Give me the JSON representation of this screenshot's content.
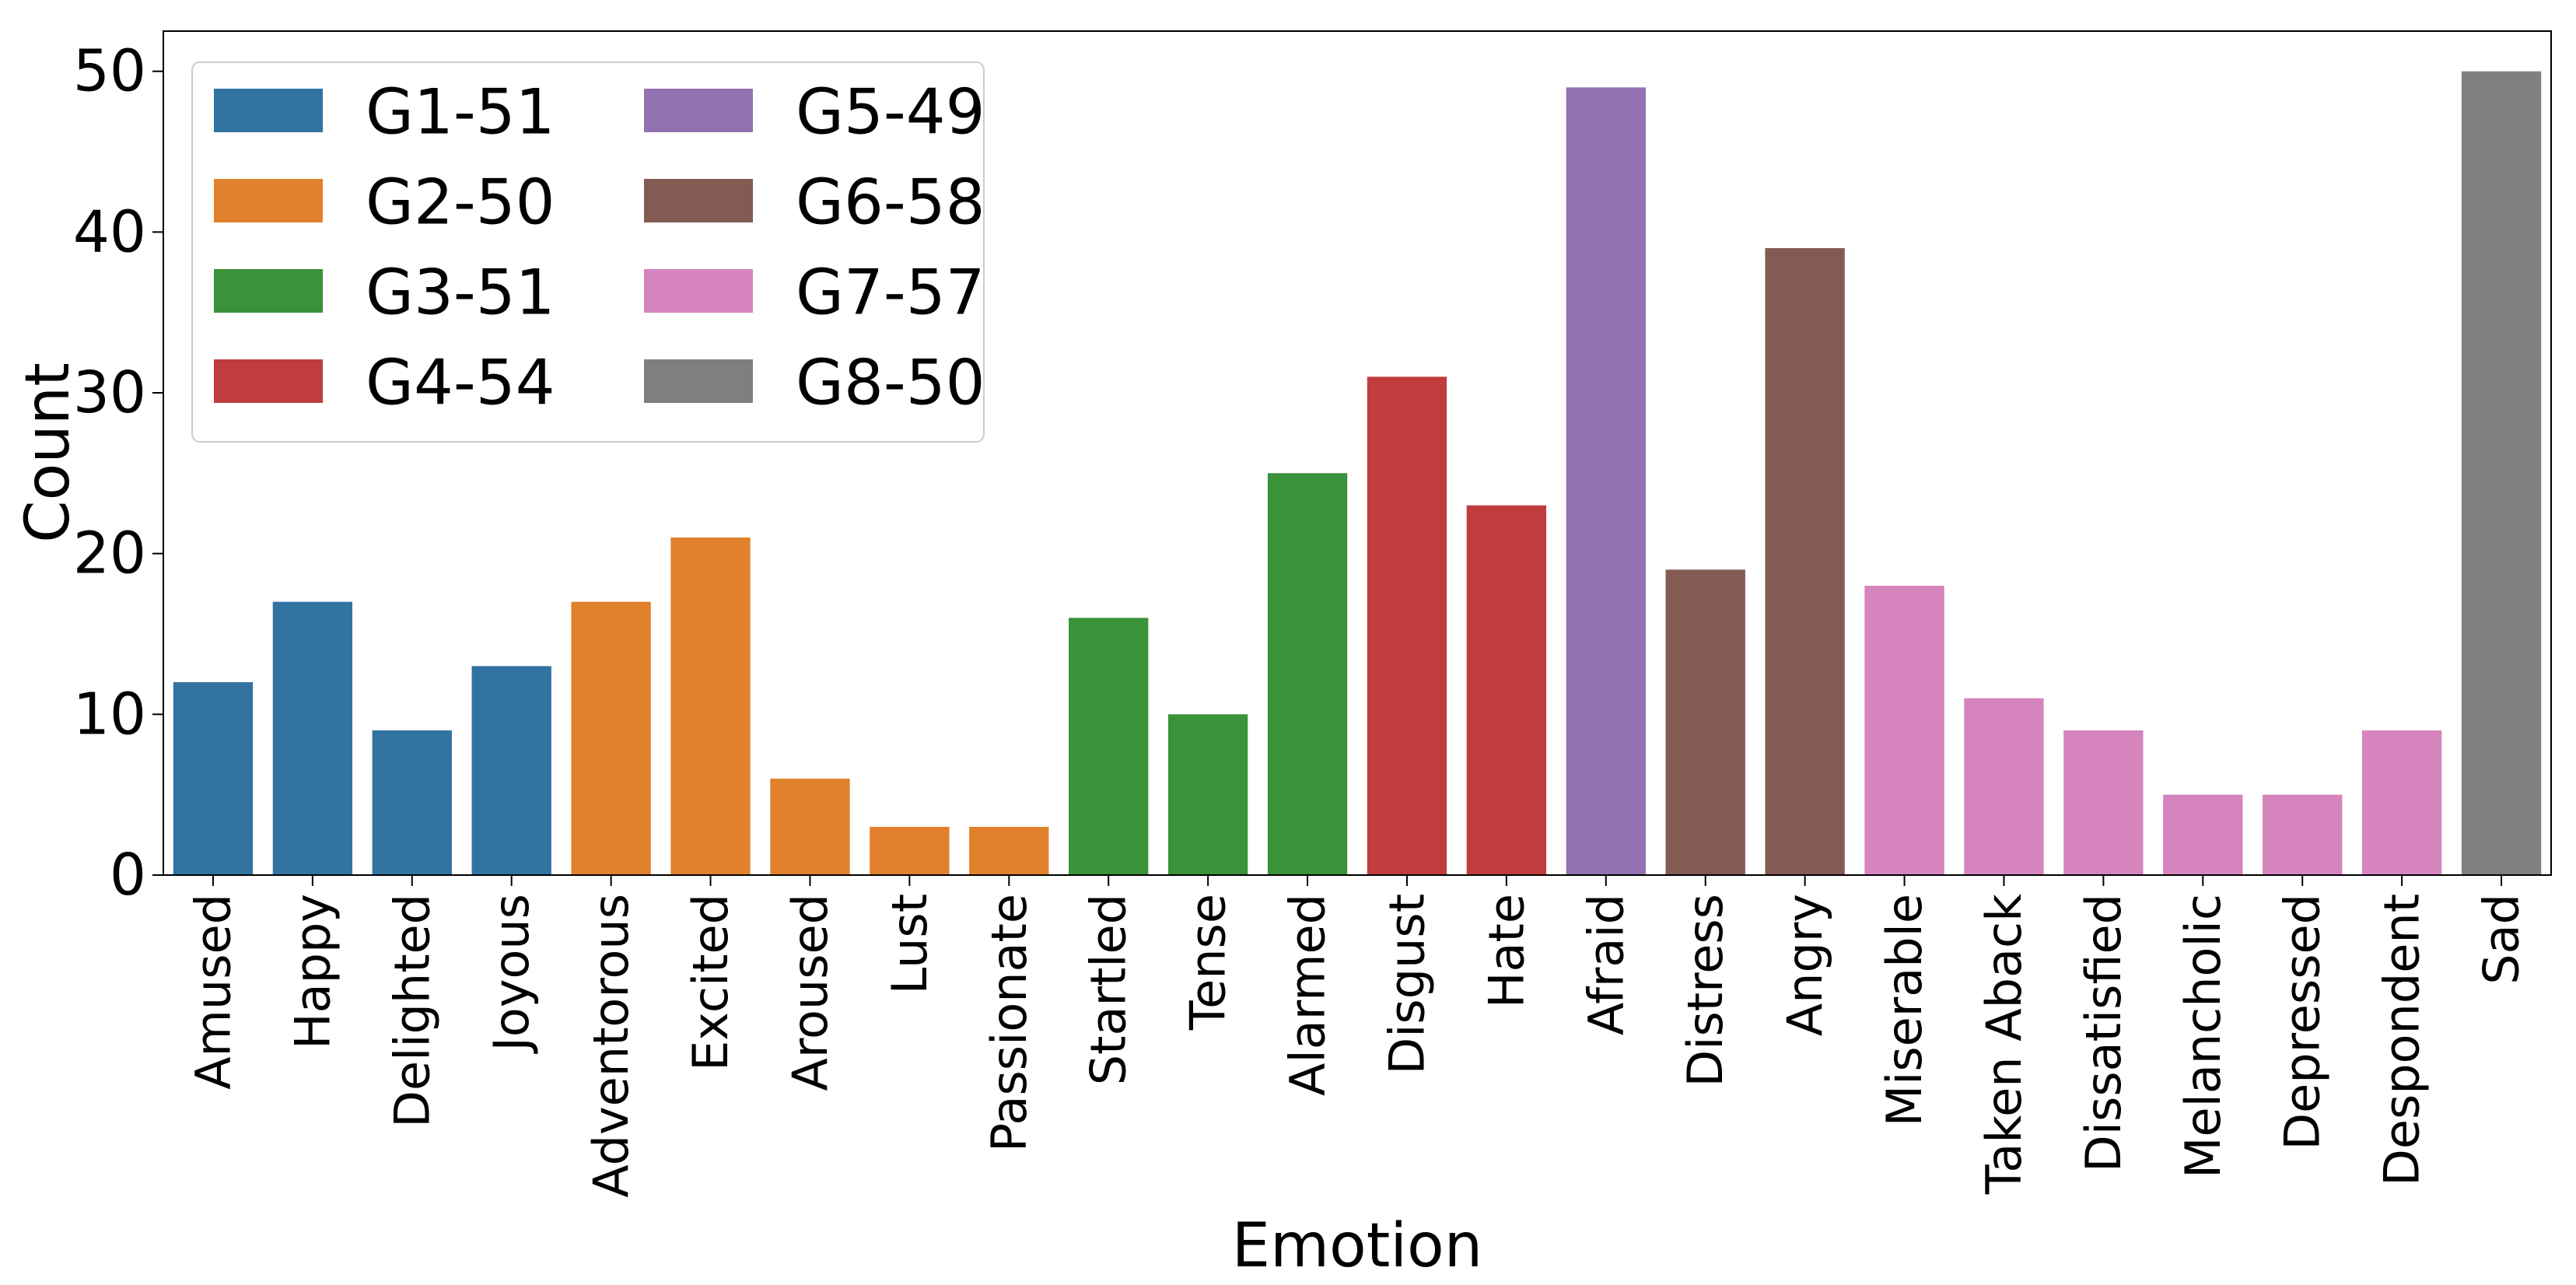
{
  "chart_data": {
    "type": "bar",
    "title": "",
    "xlabel": "Emotion",
    "ylabel": "Count",
    "ylim": [
      0,
      52.5
    ],
    "yticks": [
      0,
      10,
      20,
      30,
      40,
      50
    ],
    "grid": false,
    "legend_position": "top-left",
    "legend_columns": 2,
    "groups": [
      {
        "name": "G1-51",
        "color": "#3274a1"
      },
      {
        "name": "G2-50",
        "color": "#e1812c"
      },
      {
        "name": "G3-51",
        "color": "#3a923a"
      },
      {
        "name": "G4-54",
        "color": "#c03d3e"
      },
      {
        "name": "G5-49",
        "color": "#9372b2"
      },
      {
        "name": "G6-58",
        "color": "#845b53"
      },
      {
        "name": "G7-57",
        "color": "#d684bd"
      },
      {
        "name": "G8-50",
        "color": "#7f7f7f"
      }
    ],
    "bars": [
      {
        "category": "Amused",
        "value": 12,
        "group": 0
      },
      {
        "category": "Happy",
        "value": 17,
        "group": 0
      },
      {
        "category": "Delighted",
        "value": 9,
        "group": 0
      },
      {
        "category": "Joyous",
        "value": 13,
        "group": 0
      },
      {
        "category": "Adventorous",
        "value": 17,
        "group": 1
      },
      {
        "category": "Excited",
        "value": 21,
        "group": 1
      },
      {
        "category": "Aroused",
        "value": 6,
        "group": 1
      },
      {
        "category": "Lust",
        "value": 3,
        "group": 1
      },
      {
        "category": "Passionate",
        "value": 3,
        "group": 1
      },
      {
        "category": "Startled",
        "value": 16,
        "group": 2
      },
      {
        "category": "Tense",
        "value": 10,
        "group": 2
      },
      {
        "category": "Alarmed",
        "value": 25,
        "group": 2
      },
      {
        "category": "Disgust",
        "value": 31,
        "group": 3
      },
      {
        "category": "Hate",
        "value": 23,
        "group": 3
      },
      {
        "category": "Afraid",
        "value": 49,
        "group": 4
      },
      {
        "category": "Distress",
        "value": 19,
        "group": 5
      },
      {
        "category": "Angry",
        "value": 39,
        "group": 5
      },
      {
        "category": "Miserable",
        "value": 18,
        "group": 6
      },
      {
        "category": "Taken Aback",
        "value": 11,
        "group": 6
      },
      {
        "category": "Dissatisfied",
        "value": 9,
        "group": 6
      },
      {
        "category": "Melancholic",
        "value": 5,
        "group": 6
      },
      {
        "category": "Depressed",
        "value": 5,
        "group": 6
      },
      {
        "category": "Despondent",
        "value": 9,
        "group": 6
      },
      {
        "category": "Sad",
        "value": 50,
        "group": 7
      }
    ]
  }
}
